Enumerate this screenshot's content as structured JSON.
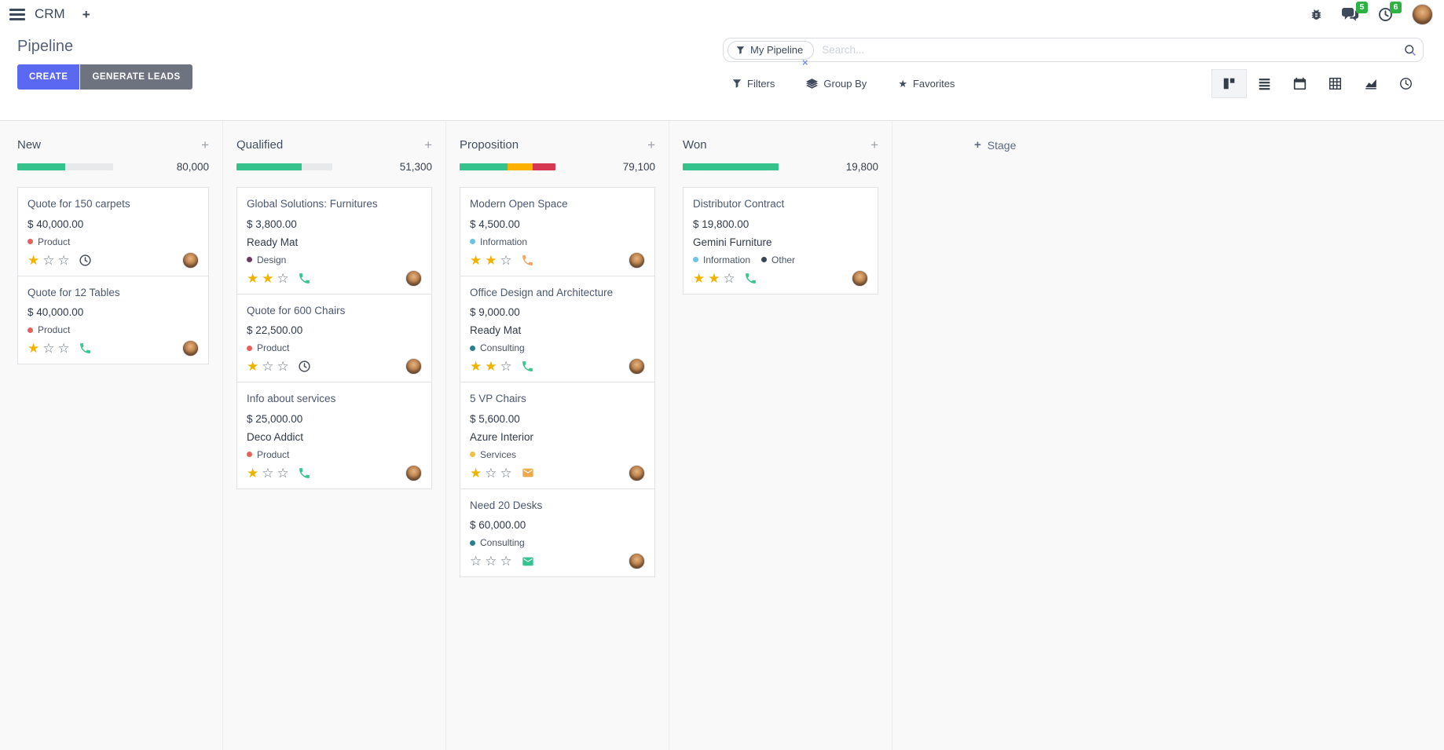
{
  "topbar": {
    "app_label": "CRM",
    "messages_badge": "5",
    "activities_badge": "6"
  },
  "control_panel": {
    "title": "Pipeline",
    "buttons": {
      "create": "CREATE",
      "generate_leads": "GENERATE LEADS"
    },
    "search": {
      "facet_label": "My Pipeline",
      "placeholder": "Search..."
    },
    "filter_menus": {
      "filters": "Filters",
      "group_by": "Group By",
      "favorites": "Favorites"
    }
  },
  "colors": {
    "primary_button": "#5b68f2",
    "secondary_button": "#6d7480",
    "badge_green": "#2db243",
    "progress_green": "#36c28c",
    "progress_orange": "#fcb000",
    "progress_red": "#d63852",
    "star_gold": "#f0b400"
  },
  "kanban": {
    "add_stage_label": "Stage",
    "columns": [
      {
        "name": "New",
        "total": "80,000",
        "progress": [
          {
            "color": "#36c28c",
            "pct": 50
          }
        ],
        "cards": [
          {
            "title": "Quote for 150 carpets",
            "amount": "$ 40,000.00",
            "tags": [
              {
                "label": "Product",
                "color": "#e4615c"
              }
            ],
            "stars": 1,
            "activity": {
              "type": "clock",
              "color": "#495057"
            }
          },
          {
            "title": "Quote for 12 Tables",
            "amount": "$ 40,000.00",
            "tags": [
              {
                "label": "Product",
                "color": "#e4615c"
              }
            ],
            "stars": 1,
            "activity": {
              "type": "phone",
              "color": "#38c78f"
            }
          }
        ]
      },
      {
        "name": "Qualified",
        "total": "51,300",
        "progress": [
          {
            "color": "#36c28c",
            "pct": 68
          }
        ],
        "cards": [
          {
            "title": "Global Solutions: Furnitures",
            "amount": "$ 3,800.00",
            "partner": "Ready Mat",
            "tags": [
              {
                "label": "Design",
                "color": "#6d3a63"
              }
            ],
            "stars": 2,
            "activity": {
              "type": "phone",
              "color": "#38c78f"
            }
          },
          {
            "title": "Quote for 600 Chairs",
            "amount": "$ 22,500.00",
            "tags": [
              {
                "label": "Product",
                "color": "#e4615c"
              }
            ],
            "stars": 1,
            "activity": {
              "type": "clock",
              "color": "#495057"
            }
          },
          {
            "title": "Info about services",
            "amount": "$ 25,000.00",
            "partner": "Deco Addict",
            "tags": [
              {
                "label": "Product",
                "color": "#e4615c"
              }
            ],
            "stars": 1,
            "activity": {
              "type": "phone",
              "color": "#38c78f"
            }
          }
        ]
      },
      {
        "name": "Proposition",
        "total": "79,100",
        "progress": [
          {
            "color": "#36c28c",
            "pct": 50
          },
          {
            "color": "#fcb000",
            "pct": 26
          },
          {
            "color": "#d63852",
            "pct": 24
          }
        ],
        "cards": [
          {
            "title": "Modern Open Space",
            "amount": "$ 4,500.00",
            "tags": [
              {
                "label": "Information",
                "color": "#6ec3e8"
              }
            ],
            "stars": 2,
            "activity": {
              "type": "phone",
              "color": "#f2a565"
            }
          },
          {
            "title": "Office Design and Architecture",
            "amount": "$ 9,000.00",
            "partner": "Ready Mat",
            "tags": [
              {
                "label": "Consulting",
                "color": "#2a7f8f"
              }
            ],
            "stars": 2,
            "activity": {
              "type": "phone",
              "color": "#38c78f"
            }
          },
          {
            "title": "5 VP Chairs",
            "amount": "$ 5,600.00",
            "partner": "Azure Interior",
            "tags": [
              {
                "label": "Services",
                "color": "#eec043"
              }
            ],
            "stars": 1,
            "activity": {
              "type": "mail",
              "color": "#efa94d"
            }
          },
          {
            "title": "Need 20 Desks",
            "amount": "$ 60,000.00",
            "tags": [
              {
                "label": "Consulting",
                "color": "#2a7f8f"
              }
            ],
            "stars": 0,
            "activity": {
              "type": "mail",
              "color": "#35c38f"
            }
          }
        ]
      },
      {
        "name": "Won",
        "total": "19,800",
        "progress": [
          {
            "color": "#36c28c",
            "pct": 100
          }
        ],
        "cards": [
          {
            "title": "Distributor Contract",
            "amount": "$ 19,800.00",
            "partner": "Gemini Furniture",
            "tags": [
              {
                "label": "Information",
                "color": "#6ec3e8"
              },
              {
                "label": "Other",
                "color": "#3a4657"
              }
            ],
            "stars": 2,
            "activity": {
              "type": "phone",
              "color": "#38c78f"
            }
          }
        ]
      }
    ]
  }
}
